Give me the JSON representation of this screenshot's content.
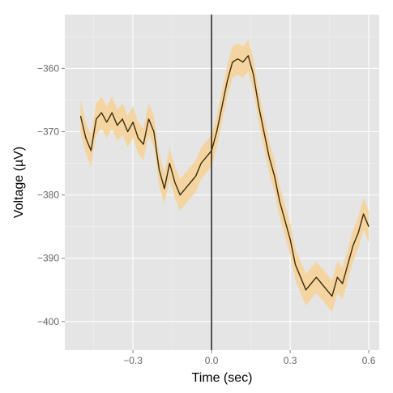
{
  "chart_data": {
    "type": "line",
    "title": "",
    "xlabel": "Time (sec)",
    "ylabel": "Voltage (µV)",
    "xlim": [
      -0.56,
      0.64
    ],
    "ylim": [
      -404.5,
      -351.5
    ],
    "x_ticks": [
      -0.3,
      0.0,
      0.3,
      0.6
    ],
    "x_tick_labels": [
      "−0.3",
      "0.0",
      "0.3",
      "0.6"
    ],
    "y_ticks": [
      -360,
      -370,
      -380,
      -390,
      -400
    ],
    "y_tick_labels": [
      "−360",
      "−370",
      "−380",
      "−390",
      "−400"
    ],
    "grid": true,
    "vertical_reference_line_x": 0.0,
    "band_halfwidth_uV": 2.5,
    "series": [
      {
        "x": [
          -0.5,
          -0.48,
          -0.46,
          -0.44,
          -0.42,
          -0.4,
          -0.38,
          -0.36,
          -0.34,
          -0.32,
          -0.3,
          -0.28,
          -0.26,
          -0.24,
          -0.22,
          -0.2,
          -0.18,
          -0.16,
          -0.14,
          -0.12,
          -0.1,
          -0.08,
          -0.06,
          -0.04,
          -0.02,
          0.0,
          0.02,
          0.04,
          0.06,
          0.08,
          0.1,
          0.12,
          0.14,
          0.16,
          0.18,
          0.2,
          0.22,
          0.24,
          0.26,
          0.28,
          0.3,
          0.32,
          0.34,
          0.36,
          0.38,
          0.4,
          0.42,
          0.44,
          0.46,
          0.48,
          0.5,
          0.52,
          0.54,
          0.56,
          0.58,
          0.6
        ],
        "y": [
          -367.5,
          -371,
          -373,
          -368,
          -367,
          -368.5,
          -367,
          -369,
          -368,
          -370,
          -368.5,
          -371,
          -372,
          -368,
          -370,
          -376,
          -379,
          -375,
          -378,
          -380,
          -379,
          -378,
          -377,
          -375,
          -374,
          -373,
          -370,
          -366,
          -362,
          -359,
          -358.5,
          -359,
          -358,
          -361,
          -366,
          -370,
          -374,
          -377,
          -381,
          -384,
          -387,
          -391,
          -393,
          -395,
          -394,
          -393,
          -394,
          -395,
          -396,
          -393,
          -394,
          -391,
          -388,
          -386,
          -383,
          -385
        ],
        "line_color": "#3c2a08",
        "band_color": "#f5d39a"
      }
    ]
  }
}
